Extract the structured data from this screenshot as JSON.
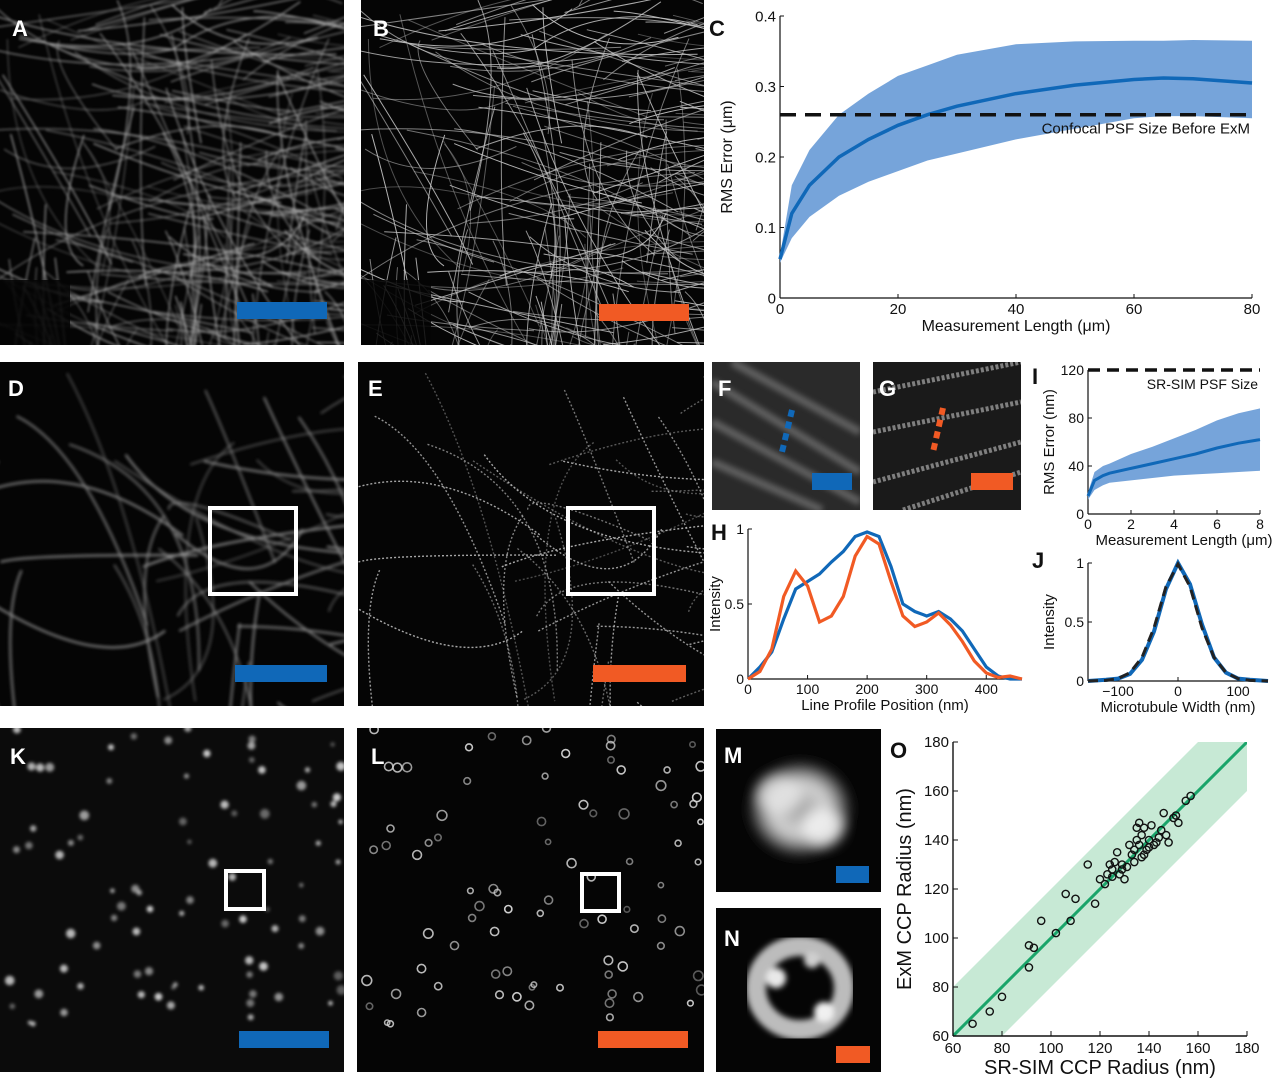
{
  "labels": {
    "A": "A",
    "B": "B",
    "C": "C",
    "D": "D",
    "E": "E",
    "F": "F",
    "G": "G",
    "H": "H",
    "I": "I",
    "J": "J",
    "K": "K",
    "L": "L",
    "M": "M",
    "N": "N",
    "O": "O"
  },
  "colors": {
    "blue": "#1068b8",
    "orange": "#f15a24",
    "band_blue": "#6f9fd8",
    "green": "#1aa56a",
    "band_green": "#c7e9d5"
  },
  "chart_data": [
    {
      "id": "C",
      "type": "line",
      "xlabel": "Measurement Length (μm)",
      "ylabel": "RMS Error (μm)",
      "xlim": [
        0,
        80
      ],
      "ylim": [
        0,
        0.4
      ],
      "xticks": [
        0,
        20,
        40,
        60,
        80
      ],
      "yticks": [
        0,
        0.1,
        0.2,
        0.3,
        0.4
      ],
      "ytick_labels": [
        "0",
        "0.1",
        "0.2",
        "0.3",
        "0.4"
      ],
      "x": [
        0,
        2,
        5,
        10,
        15,
        20,
        25,
        30,
        40,
        50,
        60,
        65,
        70,
        80
      ],
      "mean": [
        0.055,
        0.12,
        0.16,
        0.2,
        0.225,
        0.245,
        0.26,
        0.272,
        0.29,
        0.302,
        0.31,
        0.312,
        0.311,
        0.305
      ],
      "upper": [
        0.06,
        0.16,
        0.21,
        0.26,
        0.29,
        0.315,
        0.33,
        0.345,
        0.36,
        0.364,
        0.365,
        0.365,
        0.366,
        0.365
      ],
      "lower": [
        0.05,
        0.085,
        0.115,
        0.145,
        0.165,
        0.18,
        0.195,
        0.205,
        0.225,
        0.24,
        0.255,
        0.258,
        0.258,
        0.255
      ],
      "reference": {
        "value": 0.26,
        "label": "Confocal PSF Size Before ExM"
      }
    },
    {
      "id": "H",
      "type": "line",
      "xlabel": "Line Profile Position (nm)",
      "ylabel": "Intensity",
      "xlim": [
        0,
        460
      ],
      "ylim": [
        0,
        1
      ],
      "xticks": [
        0,
        100,
        200,
        300,
        400
      ],
      "yticks": [
        0,
        0.5,
        1
      ],
      "ytick_labels": [
        "0",
        "0.5",
        "1"
      ],
      "series": [
        {
          "color": "blue",
          "x": [
            0,
            20,
            40,
            60,
            80,
            100,
            120,
            140,
            160,
            180,
            200,
            220,
            240,
            260,
            280,
            300,
            320,
            340,
            360,
            380,
            400,
            420,
            440,
            460
          ],
          "y": [
            0,
            0.08,
            0.18,
            0.4,
            0.6,
            0.65,
            0.7,
            0.78,
            0.85,
            0.95,
            0.98,
            0.95,
            0.75,
            0.5,
            0.45,
            0.42,
            0.45,
            0.4,
            0.32,
            0.2,
            0.08,
            0.02,
            0,
            0
          ]
        },
        {
          "color": "orange",
          "x": [
            0,
            20,
            40,
            60,
            80,
            100,
            120,
            140,
            160,
            180,
            200,
            220,
            240,
            260,
            280,
            300,
            320,
            340,
            360,
            380,
            400,
            420,
            440,
            460
          ],
          "y": [
            0,
            0.05,
            0.2,
            0.55,
            0.72,
            0.62,
            0.38,
            0.42,
            0.55,
            0.82,
            0.95,
            0.9,
            0.65,
            0.42,
            0.35,
            0.38,
            0.44,
            0.36,
            0.25,
            0.12,
            0.04,
            0.01,
            0.02,
            0
          ]
        }
      ]
    },
    {
      "id": "I",
      "type": "line",
      "xlabel": "Measurement Length (μm)",
      "ylabel": "RMS Error (nm)",
      "xlim": [
        0,
        8
      ],
      "ylim": [
        0,
        120
      ],
      "xticks": [
        0,
        2,
        4,
        6,
        8
      ],
      "yticks": [
        0,
        40,
        80,
        120
      ],
      "ytick_labels": [
        "0",
        "40",
        "80",
        "120"
      ],
      "x": [
        0,
        0.3,
        0.7,
        1,
        2,
        3,
        4,
        5,
        6,
        7,
        8
      ],
      "mean": [
        15,
        28,
        32,
        34,
        38,
        42,
        46,
        50,
        55,
        59,
        62
      ],
      "upper": [
        18,
        35,
        40,
        42,
        50,
        56,
        63,
        70,
        78,
        84,
        88
      ],
      "lower": [
        12,
        20,
        24,
        26,
        28,
        30,
        32,
        33,
        34,
        35,
        36
      ],
      "reference": {
        "value": 120,
        "label": "SR-SIM PSF Size"
      }
    },
    {
      "id": "J",
      "type": "line",
      "xlabel": "Microtubule Width (nm)",
      "ylabel": "Intensity",
      "xlim": [
        -150,
        150
      ],
      "ylim": [
        0,
        1
      ],
      "xticks": [
        -100,
        0,
        100
      ],
      "xtick_labels": [
        "−100",
        "0",
        "100"
      ],
      "yticks": [
        0,
        0.5,
        1
      ],
      "ytick_labels": [
        "0",
        "0.5",
        "1"
      ],
      "series": [
        {
          "color": "blue",
          "x": [
            -150,
            -120,
            -100,
            -80,
            -60,
            -40,
            -20,
            0,
            20,
            40,
            60,
            80,
            100,
            120,
            150
          ],
          "y": [
            0,
            0.01,
            0.02,
            0.06,
            0.18,
            0.42,
            0.78,
            1,
            0.82,
            0.48,
            0.2,
            0.07,
            0.02,
            0.01,
            0
          ]
        },
        {
          "color": "dashed",
          "x": [
            -150,
            -120,
            -100,
            -80,
            -60,
            -40,
            -20,
            0,
            20,
            40,
            60,
            80,
            100,
            120,
            150
          ],
          "y": [
            0,
            0.005,
            0.02,
            0.07,
            0.2,
            0.45,
            0.8,
            0.99,
            0.8,
            0.45,
            0.2,
            0.07,
            0.02,
            0.005,
            0
          ]
        }
      ]
    },
    {
      "id": "O",
      "type": "scatter",
      "xlabel": "SR-SIM CCP Radius (nm)",
      "ylabel": "ExM CCP Radius (nm)",
      "xlim": [
        60,
        180
      ],
      "ylim": [
        60,
        180
      ],
      "xticks": [
        60,
        80,
        100,
        120,
        140,
        160,
        180
      ],
      "yticks": [
        60,
        80,
        100,
        120,
        140,
        160,
        180
      ],
      "fit": {
        "x": [
          60,
          180
        ],
        "y": [
          60,
          180
        ]
      },
      "band": {
        "upper_offset": 20,
        "lower_offset": -20
      },
      "points": [
        [
          68,
          65
        ],
        [
          75,
          70
        ],
        [
          80,
          76
        ],
        [
          91,
          88
        ],
        [
          91,
          97
        ],
        [
          93,
          96
        ],
        [
          96,
          107
        ],
        [
          102,
          102
        ],
        [
          106,
          118
        ],
        [
          108,
          107
        ],
        [
          110,
          116
        ],
        [
          115,
          130
        ],
        [
          118,
          114
        ],
        [
          120,
          124
        ],
        [
          122,
          122
        ],
        [
          123,
          126
        ],
        [
          124,
          130
        ],
        [
          125,
          125
        ],
        [
          125,
          128
        ],
        [
          126,
          131
        ],
        [
          127,
          135
        ],
        [
          128,
          126
        ],
        [
          129,
          130
        ],
        [
          130,
          124
        ],
        [
          131,
          129
        ],
        [
          132,
          138
        ],
        [
          133,
          134
        ],
        [
          134,
          131
        ],
        [
          135,
          140
        ],
        [
          135,
          145
        ],
        [
          136,
          138
        ],
        [
          136,
          147
        ],
        [
          137,
          142
        ],
        [
          138,
          134
        ],
        [
          138,
          145
        ],
        [
          139,
          136
        ],
        [
          140,
          137
        ],
        [
          140,
          140
        ],
        [
          141,
          146
        ],
        [
          142,
          138
        ],
        [
          143,
          139
        ],
        [
          144,
          141
        ],
        [
          145,
          144
        ],
        [
          146,
          151
        ],
        [
          147,
          142
        ],
        [
          148,
          139
        ],
        [
          150,
          149
        ],
        [
          151,
          150
        ],
        [
          152,
          147
        ],
        [
          155,
          156
        ],
        [
          157,
          158
        ],
        [
          134,
          136
        ],
        [
          137,
          133
        ],
        [
          129,
          128
        ]
      ]
    }
  ]
}
